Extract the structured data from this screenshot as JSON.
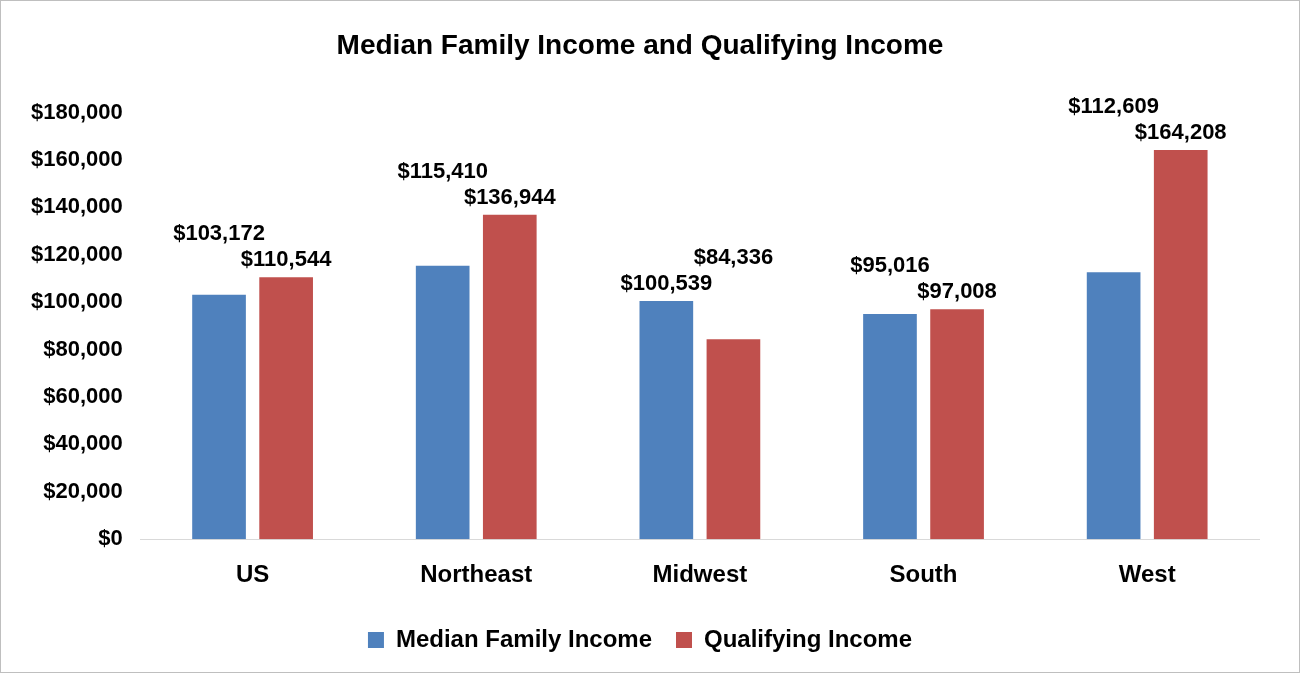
{
  "chart_data": {
    "type": "bar",
    "title": "Median Family Income and Qualifying Income",
    "categories": [
      "US",
      "Northeast",
      "Midwest",
      "South",
      "West"
    ],
    "series": [
      {
        "name": "Median Family Income",
        "color": "#4f81bd",
        "values": [
          103172,
          115410,
          100539,
          95016,
          112609
        ],
        "value_labels": [
          "$103,172",
          "$115,410",
          "$100,539",
          "$95,016",
          "$112,609"
        ]
      },
      {
        "name": "Qualifying Income",
        "color": "#c0504d",
        "values": [
          110544,
          136944,
          84336,
          97008,
          164208
        ],
        "value_labels": [
          "$110,544",
          "$136,944",
          "$84,336",
          "$97,008",
          "$164,208"
        ]
      }
    ],
    "ylim": [
      0,
      180000
    ],
    "yticks": [
      {
        "value": 0,
        "label": "$0"
      },
      {
        "value": 20000,
        "label": "$20,000"
      },
      {
        "value": 40000,
        "label": "$40,000"
      },
      {
        "value": 60000,
        "label": "$60,000"
      },
      {
        "value": 80000,
        "label": "$80,000"
      },
      {
        "value": 100000,
        "label": "$100,000"
      },
      {
        "value": 120000,
        "label": "$120,000"
      },
      {
        "value": 140000,
        "label": "$140,000"
      },
      {
        "value": 160000,
        "label": "$160,000"
      },
      {
        "value": 180000,
        "label": "$180,000"
      }
    ],
    "grid": false,
    "legend": "bottom",
    "data_labels": true
  }
}
